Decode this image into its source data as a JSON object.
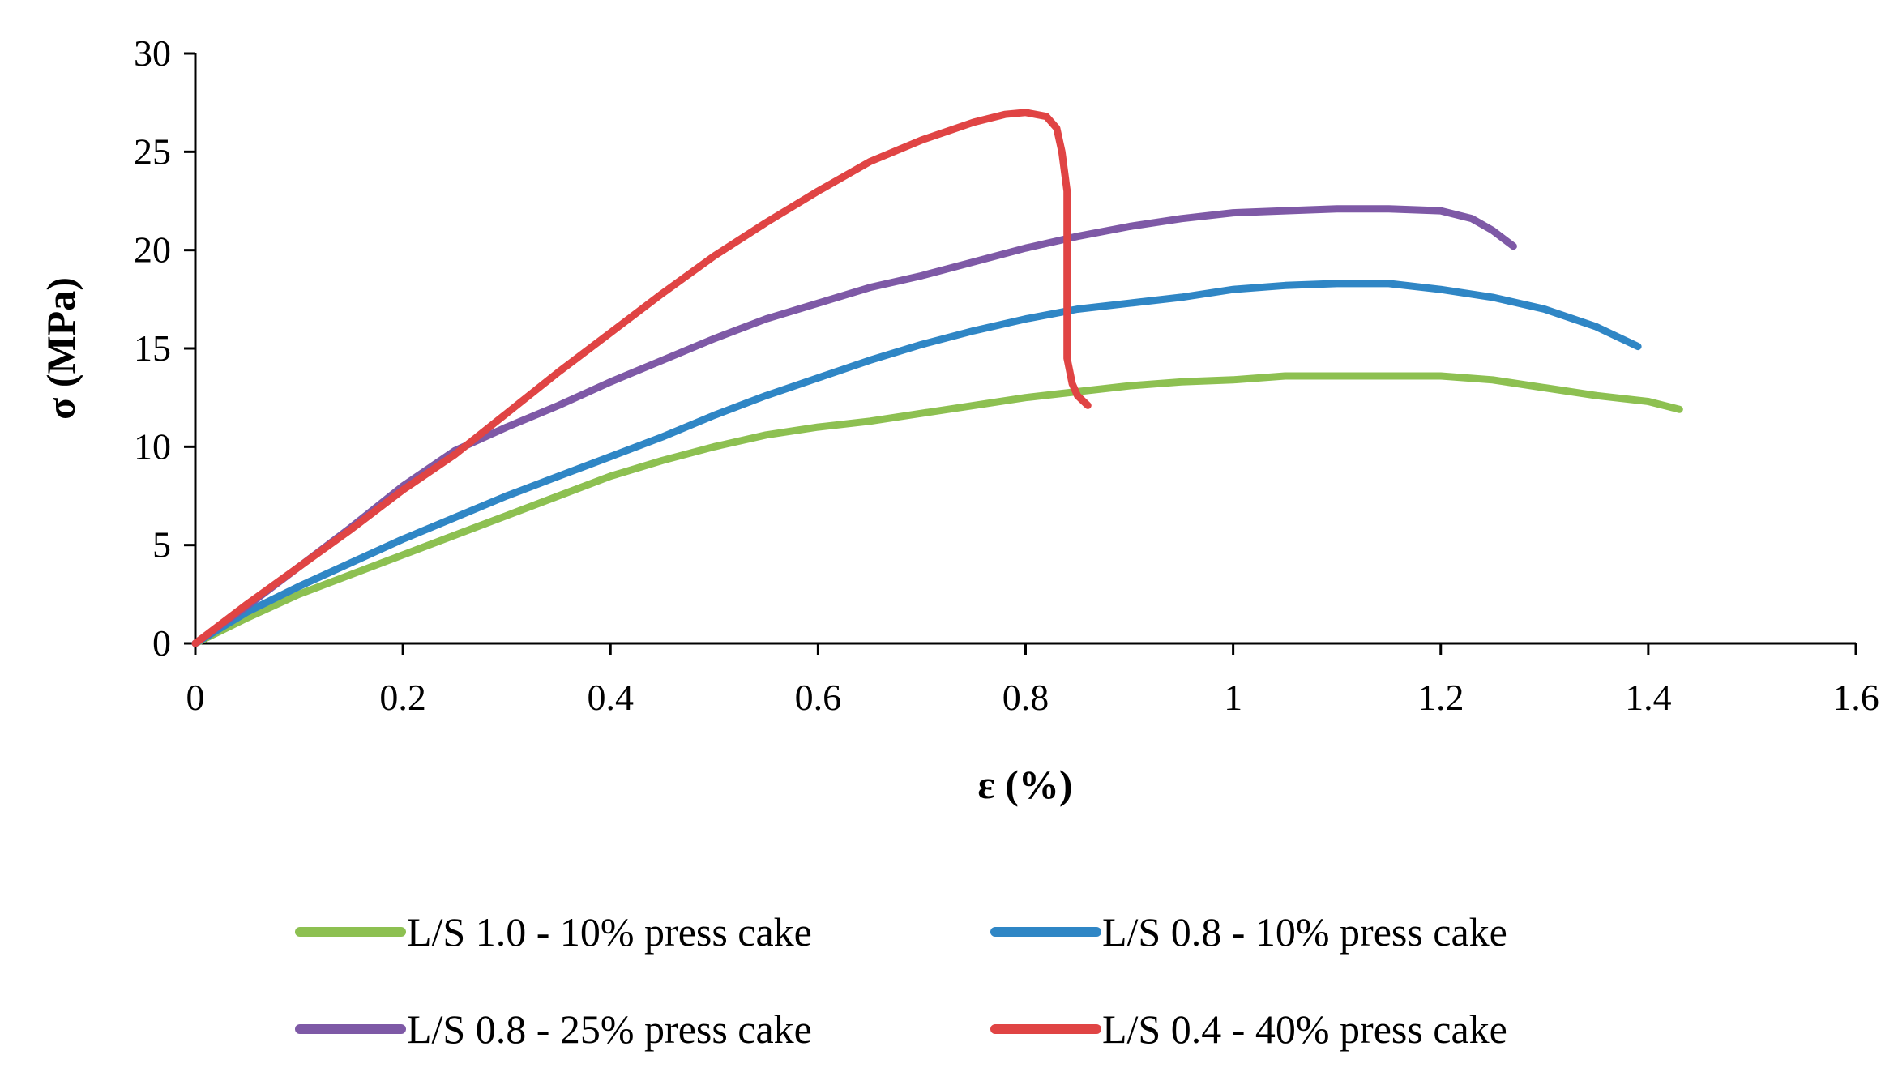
{
  "chart_data": {
    "type": "line",
    "title": "",
    "xlabel": "ε (%)",
    "ylabel": "σ (MPa)",
    "xlim": [
      0,
      1.6
    ],
    "ylim": [
      0,
      30
    ],
    "x_ticks": [
      0,
      0.2,
      0.4,
      0.6,
      0.8,
      1,
      1.2,
      1.4,
      1.6
    ],
    "x_tick_labels": [
      "0",
      "0.2",
      "0.4",
      "0.6",
      "0.8",
      "1",
      "1.2",
      "1.4",
      "1.6"
    ],
    "y_ticks": [
      0,
      5,
      10,
      15,
      20,
      25,
      30
    ],
    "y_tick_labels": [
      "0",
      "5",
      "10",
      "15",
      "20",
      "25",
      "30"
    ],
    "grid": false,
    "legend_position": "bottom",
    "series": [
      {
        "name": "L/S 1.0 - 10% press cake",
        "color": "#8DC051",
        "x": [
          0,
          0.05,
          0.1,
          0.15,
          0.2,
          0.25,
          0.3,
          0.35,
          0.4,
          0.45,
          0.5,
          0.55,
          0.6,
          0.65,
          0.7,
          0.75,
          0.8,
          0.85,
          0.9,
          0.95,
          1.0,
          1.05,
          1.1,
          1.15,
          1.2,
          1.25,
          1.3,
          1.35,
          1.4,
          1.43
        ],
        "y": [
          0,
          1.3,
          2.5,
          3.5,
          4.5,
          5.5,
          6.5,
          7.5,
          8.5,
          9.3,
          10.0,
          10.6,
          11.0,
          11.3,
          11.7,
          12.1,
          12.5,
          12.8,
          13.1,
          13.3,
          13.4,
          13.6,
          13.6,
          13.6,
          13.6,
          13.4,
          13.0,
          12.6,
          12.3,
          11.9
        ]
      },
      {
        "name": "L/S 0.8 - 10% press cake",
        "color": "#2F86C5",
        "x": [
          0,
          0.05,
          0.1,
          0.15,
          0.2,
          0.25,
          0.3,
          0.35,
          0.4,
          0.45,
          0.5,
          0.55,
          0.6,
          0.65,
          0.7,
          0.75,
          0.8,
          0.85,
          0.9,
          0.95,
          1.0,
          1.05,
          1.1,
          1.15,
          1.2,
          1.25,
          1.3,
          1.35,
          1.39
        ],
        "y": [
          0,
          1.6,
          2.9,
          4.1,
          5.3,
          6.4,
          7.5,
          8.5,
          9.5,
          10.5,
          11.6,
          12.6,
          13.5,
          14.4,
          15.2,
          15.9,
          16.5,
          17.0,
          17.3,
          17.6,
          18.0,
          18.2,
          18.3,
          18.3,
          18.0,
          17.6,
          17.0,
          16.1,
          15.1
        ]
      },
      {
        "name": "L/S 0.8 - 25% press cake",
        "color": "#7E59A6",
        "x": [
          0,
          0.05,
          0.1,
          0.15,
          0.2,
          0.25,
          0.3,
          0.35,
          0.4,
          0.45,
          0.5,
          0.55,
          0.6,
          0.65,
          0.7,
          0.75,
          0.8,
          0.85,
          0.9,
          0.95,
          1.0,
          1.05,
          1.1,
          1.15,
          1.2,
          1.23,
          1.25,
          1.27
        ],
        "y": [
          0,
          1.9,
          3.9,
          5.9,
          8.0,
          9.8,
          11.0,
          12.1,
          13.3,
          14.4,
          15.5,
          16.5,
          17.3,
          18.1,
          18.7,
          19.4,
          20.1,
          20.7,
          21.2,
          21.6,
          21.9,
          22.0,
          22.1,
          22.1,
          22.0,
          21.6,
          21.0,
          20.2
        ]
      },
      {
        "name": "L/S 0.4 - 40% press cake",
        "color": "#E04444",
        "x": [
          0,
          0.05,
          0.1,
          0.15,
          0.2,
          0.25,
          0.3,
          0.35,
          0.4,
          0.45,
          0.5,
          0.55,
          0.6,
          0.65,
          0.7,
          0.75,
          0.78,
          0.8,
          0.82,
          0.83,
          0.835,
          0.84,
          0.84,
          0.845,
          0.85,
          0.86
        ],
        "y": [
          0,
          2.0,
          3.9,
          5.8,
          7.8,
          9.6,
          11.7,
          13.8,
          15.8,
          17.8,
          19.7,
          21.4,
          23.0,
          24.5,
          25.6,
          26.5,
          26.9,
          27.0,
          26.8,
          26.2,
          25.0,
          23.0,
          14.5,
          13.2,
          12.6,
          12.1
        ]
      }
    ]
  }
}
